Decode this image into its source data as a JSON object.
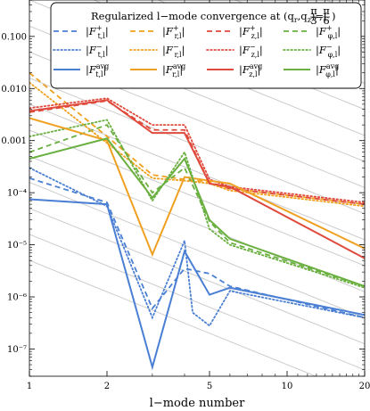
{
  "chart_data": {
    "type": "line",
    "title": "Regularized l−mode convergence at (q",
    "title_sub_r": "r",
    "title_sep": ",q",
    "title_sub_z": "z",
    "title_tail": ")=(",
    "title_frac1_num": "π",
    "title_frac1_den": "3",
    "title_frac2_num": "π",
    "title_frac2_den": "6",
    "title_close": ")",
    "xlabel": "l−mode number",
    "x_scale": "log",
    "y_scale": "log",
    "xlim": [
      1,
      20
    ],
    "ylim": [
      3e-08,
      0.5
    ],
    "x_ticks": [
      1,
      2,
      5,
      10,
      20
    ],
    "x_tick_labels": [
      "1",
      "2",
      "5",
      "10",
      "20"
    ],
    "y_ticks": [
      1e-07,
      1e-06,
      1e-05,
      0.0001,
      0.001,
      0.01,
      0.1
    ],
    "y_tick_labels": [
      "10⁻⁷",
      "10⁻⁶",
      "10⁻⁵",
      "10⁻⁴",
      "0.001",
      "0.010",
      "0.100"
    ],
    "grid": false,
    "background_curve_color": "#cccccc",
    "background_curve_offsets": [
      2,
      1.3,
      0.7,
      0.2,
      -0.3,
      -0.8,
      -1.3,
      -1.8,
      -2.3,
      -2.8,
      -3.3,
      -3.8,
      -4.3,
      -4.8,
      -5.3
    ],
    "legend_position": "top-right",
    "colors": {
      "t": "#4a7fd4",
      "r": "#f0a020",
      "z": "#e04a3c",
      "phi": "#6ab040"
    },
    "series": [
      {
        "name": "|F+ t,l|",
        "label_main": "|F",
        "label_sup": "+",
        "label_sub": "t,l",
        "component": "t",
        "style": "dashed",
        "x": [
          1,
          2,
          3,
          4,
          5,
          6,
          20
        ],
        "y": [
          0.00019,
          6.5e-05,
          6e-07,
          3.5e-06,
          2.8e-06,
          1.6e-06,
          4e-07
        ]
      },
      {
        "name": "|F+ r,l|",
        "label_main": "|F",
        "label_sup": "+",
        "label_sub": "r,l",
        "component": "r",
        "style": "dashed",
        "x": [
          1,
          2,
          3,
          4,
          5,
          6,
          20
        ],
        "y": [
          0.02,
          0.0012,
          0.00022,
          0.00018,
          0.00016,
          0.00012,
          6e-05
        ]
      },
      {
        "name": "|F+ z,l|",
        "label_main": "|F",
        "label_sup": "+",
        "label_sub": "z,l",
        "component": "z",
        "style": "dashed",
        "x": [
          1,
          2,
          3,
          4,
          5,
          6,
          20
        ],
        "y": [
          0.0035,
          0.0058,
          0.0016,
          0.0016,
          0.00015,
          0.00012,
          6e-05
        ]
      },
      {
        "name": "|F+ φ,l|",
        "label_main": "|F",
        "label_sup": "+",
        "label_sub": "φ,l",
        "component": "phi",
        "style": "dashed",
        "x": [
          1,
          2,
          3,
          4,
          5,
          6,
          20
        ],
        "y": [
          0.0006,
          0.002,
          0.0001,
          0.0003,
          2.8e-05,
          1.1e-05,
          1.6e-06
        ]
      },
      {
        "name": "|F− t,l|",
        "label_main": "|F",
        "label_sup": "−",
        "label_sub": "t,l",
        "component": "t",
        "style": "dotted",
        "x": [
          1,
          2,
          3,
          4,
          4.3,
          5,
          6,
          20
        ],
        "y": [
          0.0003,
          5.5e-05,
          4e-07,
          1.2e-05,
          5e-07,
          2.8e-07,
          1.3e-06,
          4e-07
        ]
      },
      {
        "name": "|F− r,l|",
        "label_main": "|F",
        "label_sup": "−",
        "label_sub": "r,l",
        "component": "r",
        "style": "dotted",
        "x": [
          1,
          2,
          3,
          4,
          5,
          6,
          20
        ],
        "y": [
          0.013,
          0.0009,
          0.00019,
          0.00017,
          0.00015,
          0.00011,
          5.5e-05
        ]
      },
      {
        "name": "|F− z,l|",
        "label_main": "|F",
        "label_sup": "−",
        "label_sub": "z,l",
        "component": "z",
        "style": "dotted",
        "x": [
          1,
          2,
          3,
          4,
          5,
          6,
          20
        ],
        "y": [
          0.0042,
          0.0065,
          0.002,
          0.002,
          0.00018,
          0.00013,
          6.5e-05
        ]
      },
      {
        "name": "|F− φ,l|",
        "label_main": "|F",
        "label_sup": "−",
        "label_sub": "φ,l",
        "component": "phi",
        "style": "dotted",
        "x": [
          1,
          2,
          3,
          4,
          5,
          6,
          20
        ],
        "y": [
          0.0012,
          0.0025,
          7e-05,
          0.0006,
          2e-05,
          1e-05,
          1.5e-06
        ]
      },
      {
        "name": "|Favg t,l|",
        "label_main": "|F",
        "label_sup": "avg",
        "label_sub": "t,l",
        "component": "t",
        "style": "solid",
        "x": [
          1,
          2,
          3,
          4,
          5,
          6,
          20
        ],
        "y": [
          7.5e-05,
          6e-05,
          4.5e-08,
          7.5e-06,
          1.1e-06,
          1.5e-06,
          4.5e-07
        ]
      },
      {
        "name": "|Favg r,l|",
        "label_main": "|F",
        "label_sup": "avg",
        "label_sub": "r,l",
        "component": "r",
        "style": "solid",
        "x": [
          1,
          2,
          3,
          4,
          5,
          6,
          20
        ],
        "y": [
          0.0027,
          0.001,
          6.5e-06,
          0.0002,
          0.00017,
          0.00015,
          8.5e-06
        ]
      },
      {
        "name": "|Favg z,l|",
        "label_main": "|F",
        "label_sup": "avg",
        "label_sub": "z,l",
        "component": "z",
        "style": "solid",
        "x": [
          1,
          2,
          3,
          4,
          5,
          6,
          20
        ],
        "y": [
          0.0037,
          0.006,
          0.0014,
          0.0014,
          0.00015,
          0.00013,
          5.5e-06
        ]
      },
      {
        "name": "|Favg φ,l|",
        "label_main": "|F",
        "label_sup": "avg",
        "label_sub": "φ,l",
        "component": "phi",
        "style": "solid",
        "x": [
          1,
          2,
          3,
          4,
          5,
          6,
          20
        ],
        "y": [
          0.00045,
          0.0011,
          8e-05,
          0.00045,
          3e-05,
          1.3e-05,
          1.6e-06
        ]
      }
    ]
  }
}
